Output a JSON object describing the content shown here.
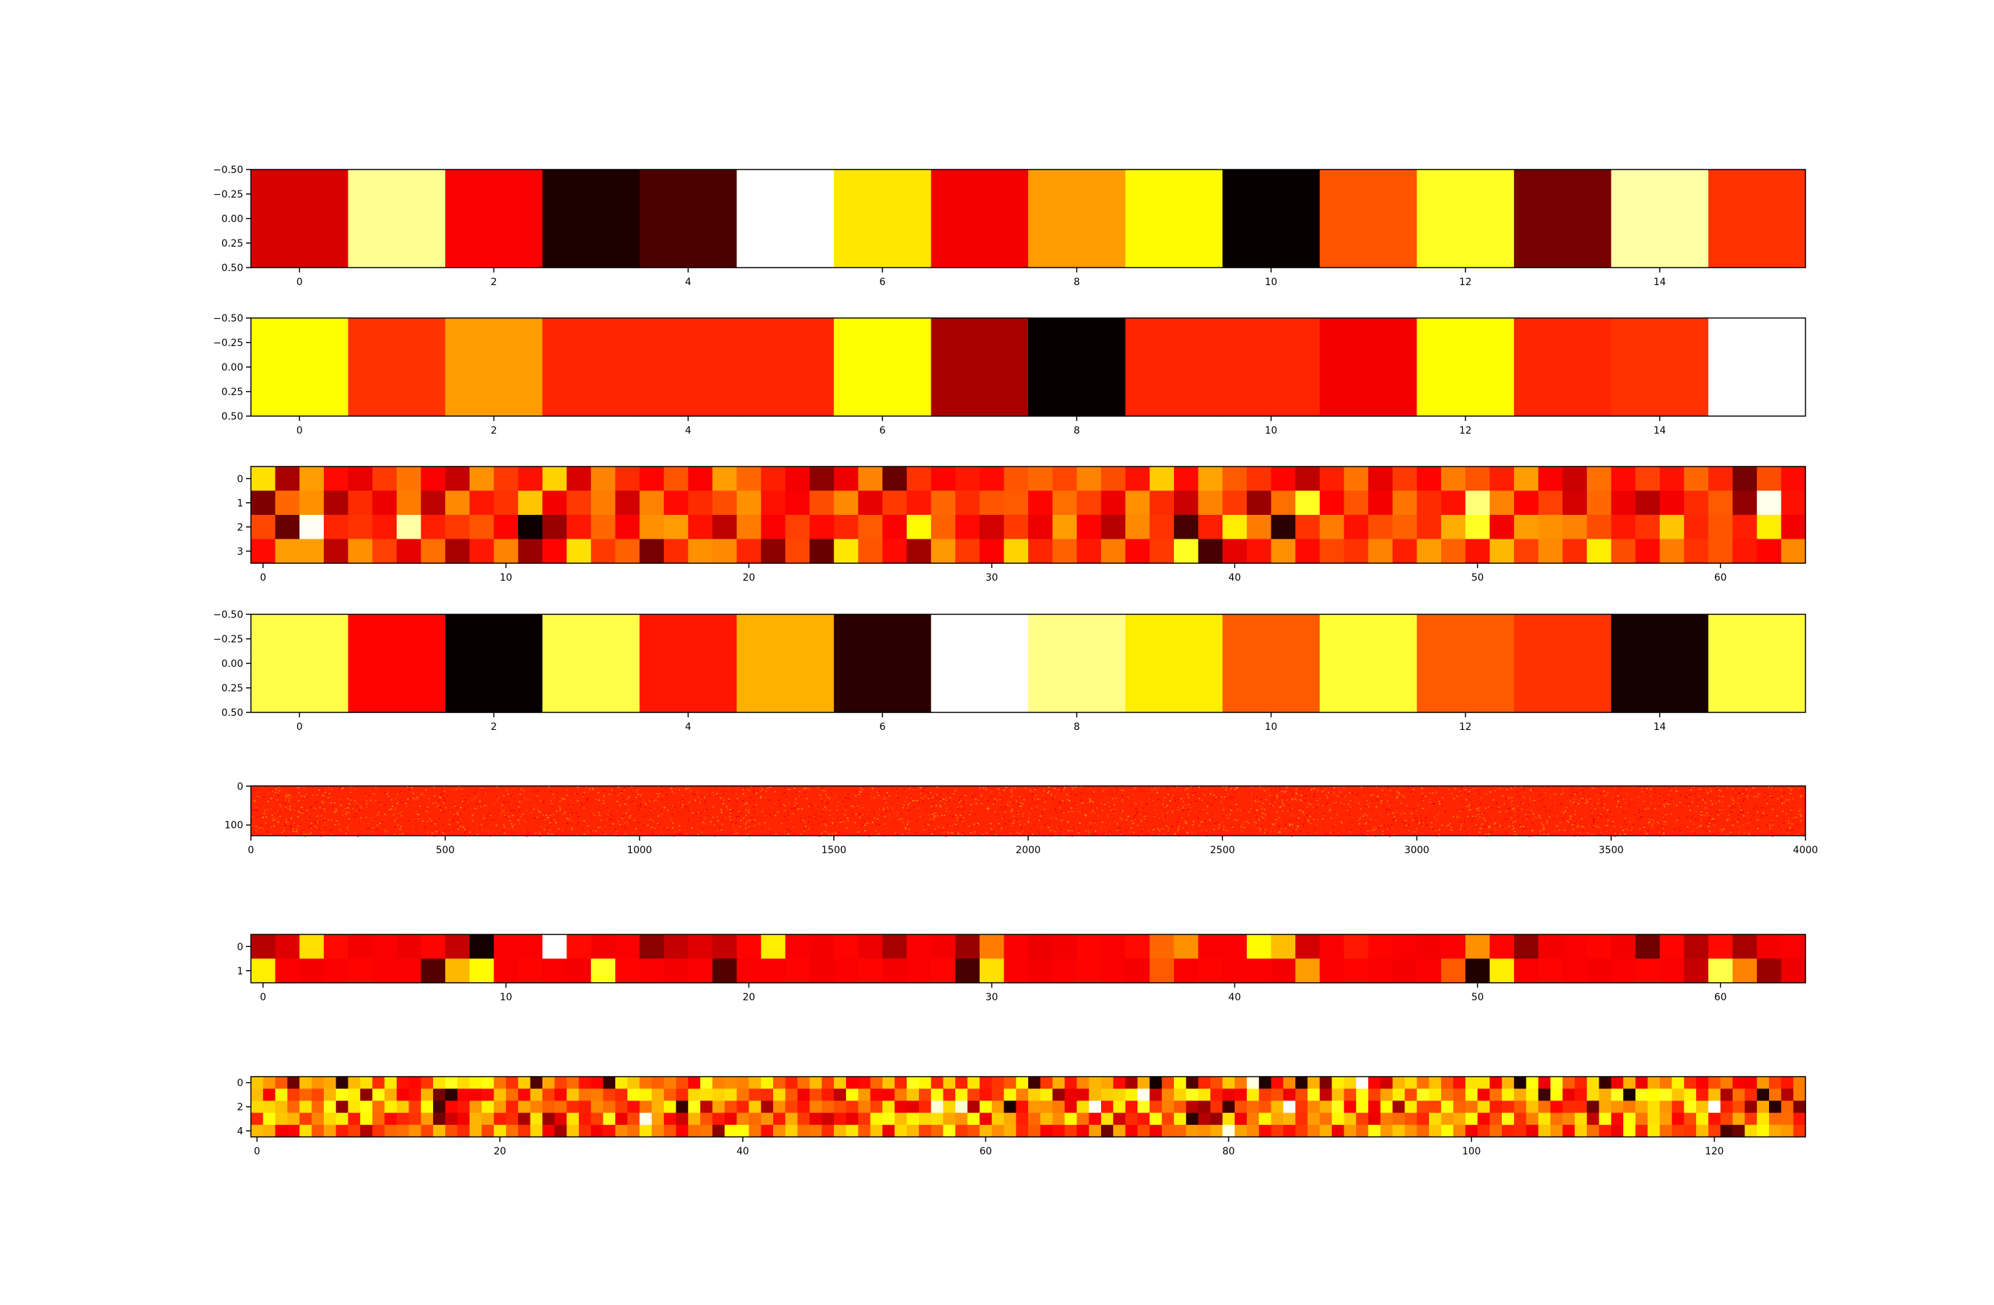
{
  "chart_data": [
    {
      "type": "heatmap",
      "colormap": "hot",
      "rows": 1,
      "cols": 16,
      "xlim": [
        -0.5,
        15.5
      ],
      "ylim": [
        0.5,
        -0.5
      ],
      "xticks": [
        0,
        2,
        4,
        6,
        8,
        10,
        12,
        14
      ],
      "yticks": [
        -0.5,
        -0.25,
        0.0,
        0.25,
        0.5
      ],
      "xtick_labels": [
        "0",
        "2",
        "4",
        "6",
        "8",
        "10",
        "12",
        "14"
      ],
      "ytick_labels": [
        "−0.50",
        "−0.25",
        "0.00",
        "0.25",
        "0.50"
      ],
      "values": [
        [
          0.31,
          0.89,
          0.36,
          0.04,
          0.11,
          1.0,
          0.71,
          0.35,
          0.6,
          0.74,
          0.01,
          0.49,
          0.78,
          0.17,
          0.91,
          0.44
        ]
      ]
    },
    {
      "type": "heatmap",
      "colormap": "hot",
      "rows": 1,
      "cols": 16,
      "xlim": [
        -0.5,
        15.5
      ],
      "ylim": [
        0.5,
        -0.5
      ],
      "xticks": [
        0,
        2,
        4,
        6,
        8,
        10,
        12,
        14
      ],
      "yticks": [
        -0.5,
        -0.25,
        0.0,
        0.25,
        0.5
      ],
      "xtick_labels": [
        "0",
        "2",
        "4",
        "6",
        "8",
        "10",
        "12",
        "14"
      ],
      "ytick_labels": [
        "−0.50",
        "−0.25",
        "0.00",
        "0.25",
        "0.50"
      ],
      "values": [
        [
          0.75,
          0.44,
          0.6,
          0.42,
          0.42,
          0.42,
          0.75,
          0.24,
          0.01,
          0.42,
          0.42,
          0.35,
          0.75,
          0.42,
          0.44,
          1.0
        ]
      ]
    },
    {
      "type": "heatmap",
      "colormap": "hot",
      "rows": 4,
      "cols": 64,
      "xlim": [
        -0.5,
        63.5
      ],
      "ylim": [
        3.5,
        -0.5
      ],
      "xticks": [
        0,
        10,
        20,
        30,
        40,
        50,
        60
      ],
      "yticks": [
        0,
        1,
        2,
        3
      ],
      "xtick_labels": [
        "0",
        "10",
        "20",
        "30",
        "40",
        "50",
        "60"
      ],
      "ytick_labels": [
        "0",
        "1",
        "2",
        "3"
      ],
      "values": [
        [
          0.7,
          0.24,
          0.6,
          0.38,
          0.33,
          0.45,
          0.54,
          0.36,
          0.28,
          0.58,
          0.45,
          0.39,
          0.68,
          0.31,
          0.56,
          0.43,
          0.37,
          0.49,
          0.36,
          0.6,
          0.52,
          0.41,
          0.35,
          0.2,
          0.34,
          0.56,
          0.15,
          0.44,
          0.37,
          0.4,
          0.38,
          0.49,
          0.52,
          0.47,
          0.56,
          0.48,
          0.39,
          0.67,
          0.38,
          0.61,
          0.5,
          0.44,
          0.37,
          0.27,
          0.41,
          0.54,
          0.33,
          0.45,
          0.37,
          0.55,
          0.49,
          0.41,
          0.6,
          0.36,
          0.29,
          0.53,
          0.38,
          0.46,
          0.39,
          0.52,
          0.42,
          0.17,
          0.48,
          0.38
        ],
        [
          0.18,
          0.52,
          0.58,
          0.25,
          0.43,
          0.34,
          0.55,
          0.27,
          0.57,
          0.4,
          0.44,
          0.66,
          0.35,
          0.45,
          0.55,
          0.3,
          0.56,
          0.38,
          0.43,
          0.48,
          0.58,
          0.39,
          0.36,
          0.48,
          0.57,
          0.33,
          0.45,
          0.4,
          0.52,
          0.43,
          0.49,
          0.5,
          0.37,
          0.53,
          0.46,
          0.34,
          0.58,
          0.43,
          0.29,
          0.56,
          0.45,
          0.22,
          0.53,
          0.78,
          0.37,
          0.49,
          0.35,
          0.54,
          0.43,
          0.39,
          0.87,
          0.56,
          0.37,
          0.46,
          0.3,
          0.52,
          0.34,
          0.26,
          0.35,
          0.43,
          0.5,
          0.21,
          0.98,
          0.39
        ],
        [
          0.47,
          0.15,
          0.99,
          0.42,
          0.44,
          0.4,
          0.91,
          0.41,
          0.45,
          0.49,
          0.37,
          0.02,
          0.22,
          0.4,
          0.52,
          0.36,
          0.58,
          0.6,
          0.39,
          0.27,
          0.55,
          0.36,
          0.46,
          0.38,
          0.42,
          0.5,
          0.36,
          0.74,
          0.51,
          0.38,
          0.3,
          0.45,
          0.34,
          0.6,
          0.37,
          0.26,
          0.57,
          0.44,
          0.1,
          0.41,
          0.72,
          0.55,
          0.06,
          0.44,
          0.55,
          0.39,
          0.48,
          0.51,
          0.43,
          0.62,
          0.78,
          0.35,
          0.6,
          0.58,
          0.56,
          0.48,
          0.4,
          0.44,
          0.66,
          0.42,
          0.49,
          0.41,
          0.72,
          0.35
        ],
        [
          0.38,
          0.6,
          0.6,
          0.27,
          0.58,
          0.46,
          0.33,
          0.53,
          0.24,
          0.4,
          0.56,
          0.22,
          0.37,
          0.7,
          0.45,
          0.51,
          0.17,
          0.43,
          0.58,
          0.57,
          0.42,
          0.2,
          0.47,
          0.15,
          0.71,
          0.49,
          0.38,
          0.23,
          0.59,
          0.45,
          0.36,
          0.68,
          0.42,
          0.51,
          0.4,
          0.55,
          0.37,
          0.45,
          0.78,
          0.1,
          0.33,
          0.39,
          0.58,
          0.38,
          0.47,
          0.44,
          0.56,
          0.41,
          0.6,
          0.51,
          0.39,
          0.64,
          0.46,
          0.57,
          0.43,
          0.72,
          0.48,
          0.38,
          0.55,
          0.44,
          0.49,
          0.4,
          0.37,
          0.57
        ]
      ]
    },
    {
      "type": "heatmap",
      "colormap": "hot",
      "rows": 1,
      "cols": 16,
      "xlim": [
        -0.5,
        15.5
      ],
      "ylim": [
        0.5,
        -0.5
      ],
      "xticks": [
        0,
        2,
        4,
        6,
        8,
        10,
        12,
        14
      ],
      "yticks": [
        -0.5,
        -0.25,
        0.0,
        0.25,
        0.5
      ],
      "xtick_labels": [
        "0",
        "2",
        "4",
        "6",
        "8",
        "10",
        "12",
        "14"
      ],
      "ytick_labels": [
        "−0.50",
        "−0.25",
        "0.00",
        "0.25",
        "0.50"
      ],
      "values": [
        [
          0.82,
          0.37,
          0.01,
          0.82,
          0.4,
          0.63,
          0.06,
          1.0,
          0.88,
          0.72,
          0.5,
          0.8,
          0.5,
          0.44,
          0.03,
          0.81
        ]
      ]
    },
    {
      "type": "heatmap",
      "colormap": "hot",
      "rows": 128,
      "cols": 4000,
      "xlim": [
        0,
        4000
      ],
      "ylim": [
        127.5,
        -0.5
      ],
      "xticks": [
        0,
        500,
        1000,
        1500,
        2000,
        2500,
        3000,
        3500,
        4000
      ],
      "yticks": [
        0,
        100
      ],
      "xtick_labels": [
        "0",
        "500",
        "1000",
        "1500",
        "2000",
        "2500",
        "3000",
        "3500",
        "4000"
      ],
      "ytick_labels": [
        "0",
        "100"
      ],
      "values_summary": "dense noise, predominantly orange-red (~0.42)"
    },
    {
      "type": "heatmap",
      "colormap": "hot",
      "rows": 2,
      "cols": 64,
      "xlim": [
        -0.5,
        63.5
      ],
      "ylim": [
        1.5,
        -0.5
      ],
      "xticks": [
        0,
        10,
        20,
        30,
        40,
        50,
        60
      ],
      "yticks": [
        0,
        1
      ],
      "xtick_labels": [
        "0",
        "10",
        "20",
        "30",
        "40",
        "50",
        "60"
      ],
      "ytick_labels": [
        "0",
        "1"
      ],
      "values": [
        [
          0.26,
          0.32,
          0.7,
          0.38,
          0.35,
          0.36,
          0.34,
          0.37,
          0.28,
          0.03,
          0.36,
          0.36,
          1.0,
          0.38,
          0.35,
          0.36,
          0.2,
          0.28,
          0.32,
          0.28,
          0.37,
          0.72,
          0.36,
          0.35,
          0.37,
          0.34,
          0.24,
          0.36,
          0.35,
          0.22,
          0.55,
          0.36,
          0.34,
          0.35,
          0.37,
          0.36,
          0.38,
          0.52,
          0.58,
          0.36,
          0.36,
          0.74,
          0.65,
          0.3,
          0.36,
          0.4,
          0.37,
          0.36,
          0.35,
          0.36,
          0.58,
          0.37,
          0.2,
          0.35,
          0.36,
          0.37,
          0.35,
          0.16,
          0.37,
          0.26,
          0.38,
          0.24,
          0.35,
          0.36
        ],
        [
          0.72,
          0.36,
          0.35,
          0.36,
          0.37,
          0.36,
          0.36,
          0.12,
          0.64,
          0.74,
          0.36,
          0.37,
          0.36,
          0.35,
          0.78,
          0.37,
          0.36,
          0.35,
          0.36,
          0.12,
          0.36,
          0.36,
          0.37,
          0.35,
          0.36,
          0.37,
          0.35,
          0.36,
          0.37,
          0.1,
          0.7,
          0.36,
          0.35,
          0.36,
          0.37,
          0.36,
          0.35,
          0.5,
          0.36,
          0.37,
          0.36,
          0.36,
          0.35,
          0.6,
          0.36,
          0.37,
          0.36,
          0.35,
          0.36,
          0.5,
          0.05,
          0.72,
          0.36,
          0.37,
          0.36,
          0.35,
          0.36,
          0.37,
          0.36,
          0.28,
          0.82,
          0.56,
          0.22,
          0.34
        ]
      ]
    },
    {
      "type": "heatmap",
      "colormap": "hot",
      "rows": 5,
      "cols": 128,
      "xlim": [
        -0.5,
        127.5
      ],
      "ylim": [
        4.5,
        -0.5
      ],
      "xticks": [
        0,
        20,
        40,
        60,
        80,
        100,
        120
      ],
      "yticks": [
        0,
        2,
        4
      ],
      "xtick_labels": [
        "0",
        "20",
        "40",
        "60",
        "80",
        "100",
        "120"
      ],
      "ytick_labels": [
        "0",
        "2",
        "4"
      ],
      "values_summary": "noisy red/orange/yellow cells with scattered black and white"
    }
  ]
}
